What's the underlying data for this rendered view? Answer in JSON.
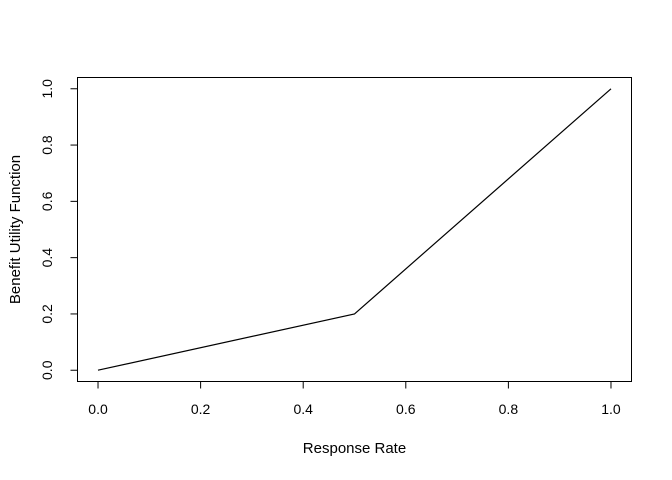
{
  "chart_data": {
    "type": "line",
    "title": "",
    "xlabel": "Response Rate",
    "ylabel": "Benefit Utility Function",
    "x": [
      0.0,
      0.5,
      1.0
    ],
    "y": [
      0.0,
      0.2,
      1.0
    ],
    "xlim": [
      0.0,
      1.0
    ],
    "ylim": [
      0.0,
      1.0
    ],
    "xticks": [
      0.0,
      0.2,
      0.4,
      0.6,
      0.8,
      1.0
    ],
    "yticks": [
      0.0,
      0.2,
      0.4,
      0.6,
      0.8,
      1.0
    ],
    "xtick_labels": [
      "0.0",
      "0.2",
      "0.4",
      "0.6",
      "0.8",
      "1.0"
    ],
    "ytick_labels": [
      "0.0",
      "0.2",
      "0.4",
      "0.6",
      "0.8",
      "1.0"
    ],
    "grid": false,
    "legend_position": "none",
    "line_color": "#000000",
    "axis_color": "#000000",
    "text_color": "#000000",
    "background_color": "#ffffff"
  }
}
